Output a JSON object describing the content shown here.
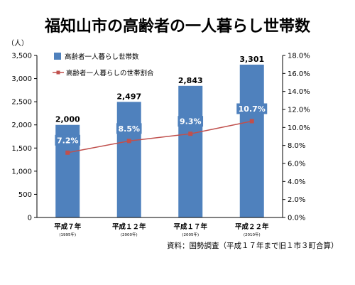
{
  "title": "福知山市の高齢者の一人暮らし世帯数",
  "source_note": "資料：国勢調査（平成１７年まで旧１市３町合算）",
  "colors": {
    "bar": "#4f81bd",
    "line": "#c0504d",
    "line_label_bg": "#4f81bd"
  },
  "chart_data": {
    "type": "bar",
    "categories": [
      "平成７年",
      "平成１２年",
      "平成１７年",
      "平成２２年"
    ],
    "category_sublabels": [
      "(1995年)",
      "(2000年)",
      "(2005年)",
      "(2010年)"
    ],
    "series": [
      {
        "name": "高齢者一人暮らし世帯数",
        "type": "bar",
        "axis": "left",
        "values": [
          2000,
          2497,
          2843,
          3301
        ],
        "labels": [
          "2,000",
          "2,497",
          "2,843",
          "3,301"
        ]
      },
      {
        "name": "高齢者一人暮らしの世帯割合",
        "type": "line",
        "axis": "right",
        "values": [
          7.2,
          8.5,
          9.3,
          10.7
        ],
        "labels": [
          "7.2%",
          "8.5%",
          "9.3%",
          "10.7%"
        ]
      }
    ],
    "y_left": {
      "unit": "（人）",
      "range": [
        0,
        3500
      ],
      "ticks": [
        "0",
        "500",
        "1,000",
        "1,500",
        "2,000",
        "2,500",
        "3,000",
        "3,500"
      ]
    },
    "y_right": {
      "range": [
        0,
        18
      ],
      "ticks": [
        "0.0%",
        "2.0%",
        "4.0%",
        "6.0%",
        "8.0%",
        "10.0%",
        "12.0%",
        "14.0%",
        "16.0%",
        "18.0%"
      ]
    },
    "grid": false,
    "legend_position": "top-left"
  }
}
